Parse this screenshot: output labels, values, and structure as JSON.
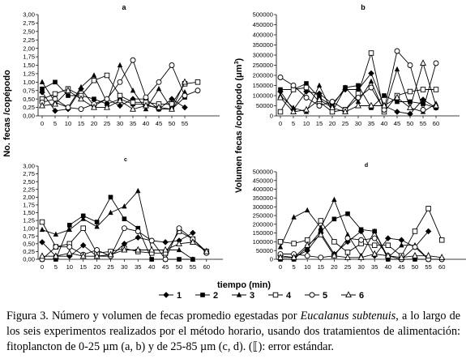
{
  "legend": [
    {
      "label": "1",
      "marker": "diamond"
    },
    {
      "label": "2",
      "marker": "square"
    },
    {
      "label": "3",
      "marker": "triangle"
    },
    {
      "label": "4",
      "marker": "square-open"
    },
    {
      "label": "5",
      "marker": "circle-open"
    },
    {
      "label": "6",
      "marker": "triangle-open"
    }
  ],
  "x_axis_title": "tiempo (min)",
  "y_axis_title_left": "No. fecas /copépodo",
  "y_axis_title_right": "Volumen fecas /copépodo (",
  "y_axis_title_right_unit": "μm",
  "y_axis_title_right_exp": "3",
  "y_axis_title_right_close": ")",
  "caption": {
    "part1": "Figura 3. Número y volumen de fecas promedio egestadas por ",
    "species": "Eucalanus subtenuis",
    "part2": ", a lo largo de los seis experimentos realizados por el método horario, usando dos tratamientos de alimentación: fitoplancton de 0-25 µm (a, b) y de 25-85 µm (c, d). (",
    "symbol": "⟦",
    "part3": "): error estándar."
  },
  "chart_data": [
    {
      "panel": "a",
      "type": "line",
      "x": [
        0,
        5,
        10,
        15,
        20,
        25,
        30,
        35,
        40,
        45,
        50,
        55,
        60
      ],
      "xticks": [
        0,
        5,
        10,
        15,
        20,
        25,
        30,
        35,
        40,
        45,
        50,
        55
      ],
      "ylim": [
        0,
        3
      ],
      "yticks": [
        "0,00",
        "0,25",
        "0,50",
        "0,75",
        "1,00",
        "1,25",
        "1,50",
        "1,75",
        "2,00",
        "2,25",
        "2,50",
        "2,75",
        "3,00"
      ],
      "ytick_values": [
        0,
        0.25,
        0.5,
        0.75,
        1,
        1.25,
        1.5,
        1.75,
        2,
        2.25,
        2.5,
        2.75,
        3
      ],
      "series": [
        {
          "values": [
            0.7,
            0.15,
            0.2,
            0.8,
            0.3,
            0.5,
            0.3,
            0.5,
            0.5,
            0.2,
            0.5,
            0.25,
            null
          ]
        },
        {
          "values": [
            0.8,
            1.0,
            0.6,
            0.6,
            0.5,
            0.35,
            0.5,
            0.35,
            0.35,
            0.2,
            0.2,
            0.55,
            null
          ]
        },
        {
          "values": [
            1.0,
            0.4,
            0.25,
            0.85,
            1.2,
            0.4,
            1.5,
            0.75,
            0.2,
            0.8,
            0.2,
            0.7,
            null
          ]
        },
        {
          "values": [
            0.5,
            0.65,
            0.8,
            0.6,
            1.05,
            1.2,
            0.6,
            0.4,
            0.4,
            0.35,
            0.35,
            0.95,
            1.0
          ]
        },
        {
          "values": [
            0.4,
            0.5,
            0.25,
            0.2,
            0.35,
            0.5,
            1.0,
            1.65,
            0.55,
            1.0,
            1.5,
            0.6,
            0.75
          ]
        },
        {
          "values": [
            0.3,
            0.35,
            0.75,
            0.5,
            0.25,
            0.25,
            0.45,
            0.2,
            0.3,
            0.25,
            0.2,
            1.0,
            null
          ]
        }
      ]
    },
    {
      "panel": "b",
      "type": "line",
      "x": [
        0,
        5,
        10,
        15,
        20,
        25,
        30,
        35,
        40,
        45,
        50,
        55,
        60
      ],
      "xticks": [
        0,
        5,
        10,
        15,
        20,
        25,
        30,
        35,
        40,
        45,
        50,
        55,
        60
      ],
      "ylim": [
        0,
        500000
      ],
      "yticks": [
        "0",
        "50000",
        "100000",
        "150000",
        "200000",
        "250000",
        "300000",
        "350000",
        "400000",
        "450000",
        "500000"
      ],
      "ytick_values": [
        0,
        50000,
        100000,
        150000,
        200000,
        250000,
        300000,
        350000,
        400000,
        450000,
        500000
      ],
      "series": [
        {
          "values": [
            120000,
            30000,
            120000,
            110000,
            60000,
            130000,
            130000,
            210000,
            50000,
            20000,
            10000,
            80000,
            40000
          ]
        },
        {
          "values": [
            130000,
            130000,
            160000,
            90000,
            50000,
            140000,
            150000,
            40000,
            100000,
            70000,
            70000,
            60000,
            40000
          ]
        },
        {
          "values": [
            100000,
            40000,
            20000,
            150000,
            20000,
            140000,
            70000,
            170000,
            20000,
            230000,
            40000,
            20000,
            60000
          ]
        },
        {
          "values": [
            20000,
            130000,
            140000,
            70000,
            20000,
            30000,
            110000,
            310000,
            20000,
            100000,
            120000,
            130000,
            130000
          ]
        },
        {
          "values": [
            190000,
            150000,
            90000,
            50000,
            70000,
            30000,
            90000,
            140000,
            30000,
            320000,
            250000,
            30000,
            260000
          ]
        },
        {
          "values": [
            90000,
            20000,
            30000,
            80000,
            40000,
            20000,
            50000,
            50000,
            50000,
            90000,
            40000,
            260000,
            50000
          ]
        }
      ]
    },
    {
      "panel": "c",
      "type": "line",
      "x": [
        0,
        5,
        10,
        15,
        20,
        25,
        30,
        35,
        40,
        45,
        50,
        55,
        60
      ],
      "xticks": [
        0,
        5,
        10,
        15,
        20,
        25,
        30,
        35,
        40,
        45,
        50,
        55,
        60
      ],
      "ylim": [
        0,
        3
      ],
      "yticks": [
        "0,00",
        "0,25",
        "0,50",
        "0,75",
        "1,00",
        "1,25",
        "1,50",
        "1,75",
        "2,00",
        "2,25",
        "2,50",
        "2,75",
        "3,00"
      ],
      "ytick_values": [
        0,
        0.25,
        0.5,
        0.75,
        1,
        1.25,
        1.5,
        1.75,
        2,
        2.25,
        2.5,
        2.75,
        3
      ],
      "series": [
        {
          "values": [
            0.55,
            0.1,
            0.1,
            0.45,
            0.1,
            0.1,
            0.5,
            0.7,
            0.6,
            0.55,
            0.6,
            0.85,
            null
          ]
        },
        {
          "values": [
            0.0,
            0.0,
            1.1,
            1.4,
            1.2,
            2.0,
            1.3,
            1.0,
            0.0,
            0.0,
            0.0,
            0.0,
            null
          ]
        },
        {
          "values": [
            0.95,
            0.8,
            0.95,
            1.3,
            1.05,
            1.5,
            1.7,
            2.2,
            0.3,
            0.3,
            0.3,
            0.0,
            null
          ]
        },
        {
          "values": [
            1.2,
            0.4,
            0.5,
            1.0,
            0.2,
            0.25,
            0.35,
            0.25,
            0.2,
            0.2,
            0.9,
            0.65,
            0.25
          ]
        },
        {
          "values": [
            0.0,
            0.4,
            0.4,
            0.15,
            0.3,
            0.1,
            1.0,
            0.9,
            0.6,
            0.0,
            1.0,
            0.65,
            0.2
          ]
        },
        {
          "values": [
            0.1,
            0.1,
            0.2,
            0.1,
            0.1,
            0.15,
            0.3,
            0.3,
            0.3,
            0.3,
            0.5,
            0.55,
            0.25
          ]
        }
      ]
    },
    {
      "panel": "d",
      "type": "line",
      "x": [
        0,
        5,
        10,
        15,
        20,
        25,
        30,
        35,
        40,
        45,
        50,
        55,
        60
      ],
      "xticks": [
        0,
        5,
        10,
        15,
        20,
        25,
        30,
        35,
        40,
        45,
        50,
        55,
        60
      ],
      "ylim": [
        0,
        500000
      ],
      "yticks": [
        "0",
        "50000",
        "100000",
        "150000",
        "200000",
        "250000",
        "300000",
        "350000",
        "400000",
        "450000",
        "500000"
      ],
      "ytick_values": [
        0,
        50000,
        100000,
        150000,
        200000,
        250000,
        300000,
        350000,
        400000,
        450000,
        500000
      ],
      "series": [
        {
          "values": [
            20000,
            10000,
            50000,
            150000,
            30000,
            100000,
            160000,
            20000,
            120000,
            110000,
            70000,
            160000,
            null
          ]
        },
        {
          "values": [
            0,
            0,
            70000,
            160000,
            230000,
            260000,
            170000,
            160000,
            0,
            0,
            0,
            0,
            null
          ]
        },
        {
          "values": [
            70000,
            240000,
            280000,
            180000,
            340000,
            140000,
            20000,
            160000,
            10000,
            80000,
            80000,
            0,
            null
          ]
        },
        {
          "values": [
            100000,
            90000,
            110000,
            220000,
            100000,
            40000,
            90000,
            80000,
            80000,
            20000,
            160000,
            290000,
            110000
          ]
        },
        {
          "values": [
            30000,
            30000,
            20000,
            10000,
            20000,
            120000,
            110000,
            120000,
            20000,
            0,
            70000,
            0,
            0
          ]
        },
        {
          "values": [
            10000,
            10000,
            80000,
            140000,
            20000,
            10000,
            10000,
            30000,
            20000,
            10000,
            20000,
            20000,
            10000
          ]
        }
      ]
    }
  ]
}
